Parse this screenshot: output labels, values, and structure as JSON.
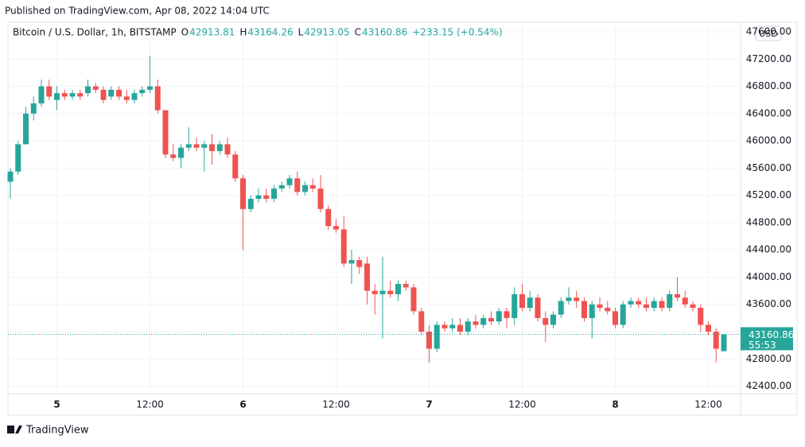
{
  "header": {
    "published": "Published on TradingView.com, Apr 08, 2022 14:04 UTC",
    "footer": "TradingView"
  },
  "chart_data": {
    "type": "candlestick",
    "title": "Bitcoin / U.S. Dollar, 1h, BITSTAMP",
    "legend": {
      "o": "O",
      "h": "H",
      "l": "L",
      "c": "C",
      "change": "+233.15 (+0.54%)"
    },
    "currency": "USD",
    "countdown": "55:53",
    "up_color": "#26a69a",
    "down_color": "#ef5350",
    "grid": true,
    "categories": [
      null,
      null,
      null,
      null,
      null,
      null,
      "5",
      null,
      null,
      null,
      null,
      null,
      null,
      null,
      null,
      null,
      null,
      null,
      "12:00",
      null,
      null,
      null,
      null,
      null,
      null,
      null,
      null,
      null,
      null,
      null,
      "6",
      null,
      null,
      null,
      null,
      null,
      null,
      null,
      null,
      null,
      null,
      null,
      "12:00",
      null,
      null,
      null,
      null,
      null,
      null,
      null,
      null,
      null,
      null,
      null,
      "7",
      null,
      null,
      null,
      null,
      null,
      null,
      null,
      null,
      null,
      null,
      null,
      "12:00",
      null,
      null,
      null,
      null,
      null,
      null,
      null,
      null,
      null,
      null,
      null,
      "8",
      null,
      null,
      null,
      null,
      null,
      null,
      null,
      null,
      null,
      null,
      null,
      "12:00",
      null,
      null
    ],
    "open": [
      45400,
      45550,
      45950,
      46400,
      46550,
      46800,
      46600,
      46700,
      46650,
      46700,
      46700,
      46800,
      46750,
      46650,
      46750,
      46650,
      46600,
      46700,
      46750,
      46800,
      46450,
      45800,
      45750,
      45900,
      45950,
      45900,
      45950,
      45850,
      45950,
      45800,
      45450,
      45000,
      45150,
      45200,
      45150,
      45300,
      45350,
      45450,
      45250,
      45350,
      45300,
      45000,
      44750,
      44700,
      44200,
      44250,
      44200,
      43800,
      43750,
      43800,
      43750,
      43900,
      43850,
      43500,
      43200,
      42950,
      43300,
      43250,
      43300,
      43200,
      43350,
      43300,
      43400,
      43350,
      43500,
      43400,
      43750,
      43550,
      43700,
      43400,
      43300,
      43450,
      43650,
      43700,
      43650,
      43400,
      43600,
      43550,
      43500,
      43300,
      43600,
      43650,
      43600,
      43550,
      43650,
      43550,
      43750,
      43700,
      43600,
      43550,
      43300,
      43200,
      42913.81
    ],
    "high": [
      45600,
      46000,
      46500,
      46650,
      46900,
      46900,
      46800,
      46750,
      46750,
      46750,
      46900,
      46850,
      46800,
      46800,
      46800,
      46750,
      46750,
      46800,
      47250,
      46900,
      46450,
      45950,
      45950,
      46200,
      46050,
      46000,
      46100,
      46000,
      46050,
      45850,
      45500,
      45200,
      45300,
      45300,
      45350,
      45400,
      45500,
      45550,
      45400,
      45450,
      45500,
      45050,
      44850,
      44900,
      44400,
      44300,
      44300,
      43900,
      44300,
      43950,
      43950,
      43950,
      43900,
      43550,
      43300,
      43350,
      43350,
      43400,
      43400,
      43400,
      43450,
      43450,
      43500,
      43550,
      43550,
      43850,
      43900,
      43800,
      43750,
      43500,
      43500,
      43700,
      43850,
      43800,
      43700,
      43650,
      43700,
      43650,
      43550,
      43650,
      43700,
      43700,
      43700,
      43700,
      43700,
      43800,
      44000,
      43800,
      43650,
      43600,
      43350,
      43250,
      43164.26
    ],
    "low": [
      45150,
      45500,
      45950,
      46300,
      46500,
      46600,
      46450,
      46600,
      46600,
      46600,
      46650,
      46700,
      46550,
      46600,
      46600,
      46550,
      46550,
      46650,
      46700,
      46400,
      45750,
      45700,
      45600,
      45850,
      45850,
      45550,
      45650,
      45800,
      45750,
      45400,
      44400,
      44950,
      45100,
      45100,
      45100,
      45250,
      45300,
      45200,
      45200,
      45250,
      44950,
      44700,
      44650,
      44150,
      43900,
      44050,
      43600,
      43450,
      43100,
      43700,
      43650,
      43800,
      43450,
      43150,
      42750,
      42900,
      43200,
      43200,
      43150,
      43150,
      43250,
      43250,
      43300,
      43300,
      43250,
      43300,
      43500,
      43500,
      43350,
      43050,
      43250,
      43400,
      43600,
      43550,
      43350,
      43100,
      43500,
      43450,
      43250,
      43250,
      43550,
      43550,
      43500,
      43500,
      43500,
      43500,
      43650,
      43550,
      43500,
      43200,
      43150,
      42750,
      42913.05
    ],
    "close": [
      45550,
      45950,
      46400,
      46550,
      46800,
      46650,
      46700,
      46650,
      46700,
      46650,
      46800,
      46750,
      46600,
      46750,
      46650,
      46600,
      46700,
      46750,
      46800,
      46450,
      45800,
      45750,
      45900,
      45950,
      45900,
      45950,
      45850,
      45950,
      45800,
      45450,
      45000,
      45150,
      45200,
      45150,
      45300,
      45350,
      45450,
      45250,
      45350,
      45300,
      45000,
      44750,
      44700,
      44200,
      44250,
      44150,
      43800,
      43750,
      43800,
      43750,
      43900,
      43850,
      43500,
      43200,
      42950,
      43300,
      43250,
      43300,
      43200,
      43350,
      43300,
      43400,
      43350,
      43500,
      43400,
      43750,
      43550,
      43700,
      43400,
      43300,
      43450,
      43650,
      43700,
      43650,
      43400,
      43600,
      43550,
      43500,
      43300,
      43600,
      43650,
      43600,
      43550,
      43650,
      43550,
      43750,
      43700,
      43600,
      43550,
      43300,
      43200,
      42950,
      43160.86
    ],
    "ylim": [
      42290,
      47740
    ],
    "yticks": [
      {
        "value": 42400,
        "label": "42400.00"
      },
      {
        "value": 42800,
        "label": "42800.00"
      },
      {
        "value": 43200,
        "label": "43200.00"
      },
      {
        "value": 43600,
        "label": "43600.00"
      },
      {
        "value": 44000,
        "label": "44000.00"
      },
      {
        "value": 44400,
        "label": "44400.00"
      },
      {
        "value": 44800,
        "label": "44800.00"
      },
      {
        "value": 45200,
        "label": "45200.00"
      },
      {
        "value": 45600,
        "label": "45600.00"
      },
      {
        "value": 46000,
        "label": "46000.00"
      },
      {
        "value": 46400,
        "label": "46400.00"
      },
      {
        "value": 46800,
        "label": "46800.00"
      },
      {
        "value": 47200,
        "label": "47200.00"
      },
      {
        "value": 47600,
        "label": "47600.00"
      }
    ]
  }
}
